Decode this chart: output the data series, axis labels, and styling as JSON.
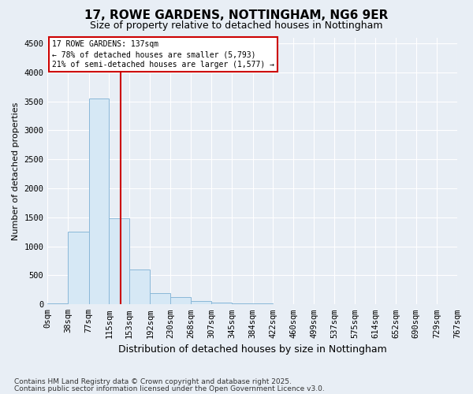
{
  "title": "17, ROWE GARDENS, NOTTINGHAM, NG6 9ER",
  "subtitle": "Size of property relative to detached houses in Nottingham",
  "xlabel": "Distribution of detached houses by size in Nottingham",
  "ylabel": "Number of detached properties",
  "property_size": 137,
  "property_label": "17 ROWE GARDENS: 137sqm",
  "annotation_line1": "← 78% of detached houses are smaller (5,793)",
  "annotation_line2": "21% of semi-detached houses are larger (1,577) →",
  "footer_line1": "Contains HM Land Registry data © Crown copyright and database right 2025.",
  "footer_line2": "Contains public sector information licensed under the Open Government Licence v3.0.",
  "bar_color": "#d6e8f5",
  "bar_edge_color": "#8ab8d8",
  "vline_color": "#cc0000",
  "annotation_box_color": "#cc0000",
  "ylim": [
    0,
    4600
  ],
  "xlim": [
    0,
    767
  ],
  "bin_edges": [
    0,
    38,
    77,
    115,
    153,
    192,
    230,
    268,
    307,
    345,
    384,
    422,
    460,
    499,
    537,
    575,
    614,
    652,
    690,
    729,
    767
  ],
  "bin_labels": [
    "0sqm",
    "38sqm",
    "77sqm",
    "115sqm",
    "153sqm",
    "192sqm",
    "230sqm",
    "268sqm",
    "307sqm",
    "345sqm",
    "384sqm",
    "422sqm",
    "460sqm",
    "499sqm",
    "537sqm",
    "575sqm",
    "614sqm",
    "652sqm",
    "690sqm",
    "729sqm",
    "767sqm"
  ],
  "counts": [
    20,
    1260,
    3550,
    1480,
    600,
    200,
    120,
    60,
    35,
    20,
    12,
    8,
    6,
    5,
    0,
    0,
    0,
    0,
    0,
    0
  ],
  "yticks": [
    0,
    500,
    1000,
    1500,
    2000,
    2500,
    3000,
    3500,
    4000,
    4500
  ],
  "background_color": "#e8eef5",
  "plot_bg_color": "#e8eef5",
  "grid_color": "#ffffff",
  "title_fontsize": 11,
  "subtitle_fontsize": 9,
  "tick_fontsize": 7.5,
  "ylabel_fontsize": 8,
  "xlabel_fontsize": 9,
  "footer_fontsize": 6.5
}
